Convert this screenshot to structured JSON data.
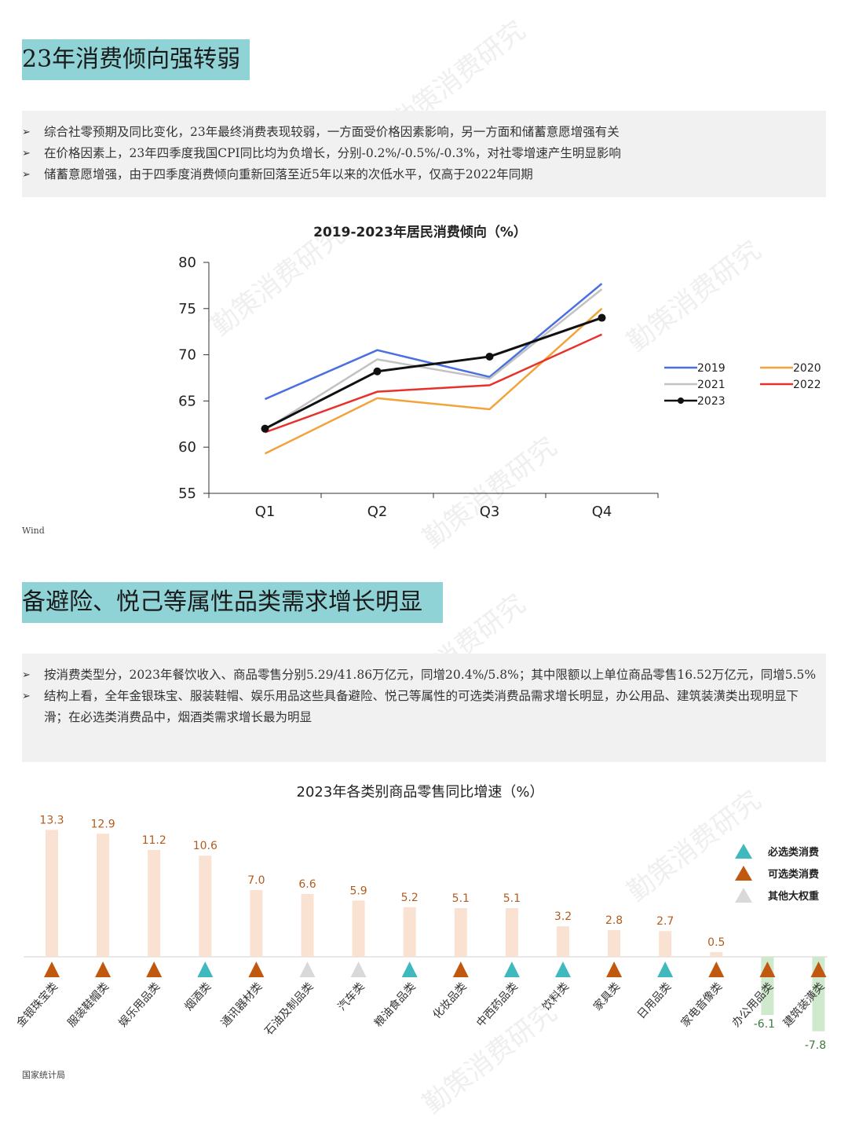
{
  "section1": {
    "title": "23年消费倾向强转弱",
    "bullets": [
      "综合社零预期及同比变化，23年最终消费表现较弱，一方面受价格因素影响，另一方面和储蓄意愿增强有关",
      "在价格因素上，23年四季度我国CPI同比均为负增长，分别-0.2%/-0.5%/-0.3%，对社零增速产生明显影响",
      "储蓄意愿增强，由于四季度消费倾向重新回落至近5年以来的次低水平，仅高于2022年同期"
    ],
    "source": "Wind"
  },
  "section2": {
    "title": "备避险、悦己等属性品类需求增长明显",
    "bullets": [
      "按消费类型分，2023年餐饮收入、商品零售分别5.29/41.86万亿元，同增20.4%/5.8%；其中限额以上单位商品零售16.52万亿元，同增5.5%",
      "结构上看，全年金银珠宝、服装鞋帽、娱乐用品这些具备避险、悦己等属性的可选类消费品需求增长明显，办公用品、建筑装潢类出现明显下滑；在必选类消费品中，烟酒类需求增长最为明显"
    ],
    "source": "国家统计局"
  },
  "bullet_mark": "➢",
  "watermark_text": "勤策消费研究",
  "chart_data": [
    {
      "type": "line",
      "title": "2019-2023年居民消费倾向（%）",
      "categories": [
        "Q1",
        "Q2",
        "Q3",
        "Q4"
      ],
      "ylim": [
        55,
        80
      ],
      "yticks": [
        55,
        60,
        65,
        70,
        75,
        80
      ],
      "grid": false,
      "legend_position": "right",
      "series": [
        {
          "name": "2019",
          "color": "#4a6fe0",
          "values": [
            65.2,
            70.5,
            67.6,
            77.7
          ],
          "markers": false
        },
        {
          "name": "2020",
          "color": "#f2a33a",
          "values": [
            59.3,
            65.3,
            64.1,
            75.0
          ],
          "markers": false
        },
        {
          "name": "2021",
          "color": "#c2c2c2",
          "values": [
            61.9,
            69.5,
            67.4,
            77.1
          ],
          "markers": false
        },
        {
          "name": "2022",
          "color": "#e8312a",
          "values": [
            61.6,
            66.0,
            66.7,
            72.2
          ],
          "markers": false
        },
        {
          "name": "2023",
          "color": "#111111",
          "values": [
            62.0,
            68.2,
            69.8,
            74.0
          ],
          "markers": true
        }
      ]
    },
    {
      "type": "bar",
      "title": "2023年各类别商品零售同比增速（%）",
      "categories": [
        "金银珠宝类",
        "服装鞋帽类",
        "娱乐用品类",
        "烟酒类",
        "通讯器材类",
        "石油及制品类",
        "汽车类",
        "粮油食品类",
        "化妆品类",
        "中西药品类",
        "饮料类",
        "家具类",
        "日用品类",
        "家电音像类",
        "办公用品类",
        "建筑装潢类"
      ],
      "category_labels": [
        "金银珠宝类",
        "服装鞋帽类",
        "娱乐用品类",
        "烟酒类",
        "通讯器材类",
        "石油及制品类",
        "汽车类",
        "粮油食品类",
        "化妆品类",
        "中西药品类",
        "饮料类",
        "家具类",
        "日用品类",
        "家电音像类",
        "办公用品类",
        "建筑装潢类"
      ],
      "values": [
        13.3,
        12.9,
        11.2,
        10.6,
        7.0,
        6.6,
        5.9,
        5.2,
        5.1,
        5.1,
        3.2,
        2.8,
        2.7,
        0.5,
        -6.1,
        -7.8
      ],
      "value_labels": [
        "13.3",
        "12.9",
        "11.2",
        "10.6",
        "7.0",
        "6.6",
        "5.9",
        "5.2",
        "5.1",
        "5.1",
        "3.2",
        "2.8",
        "2.7",
        "0.5",
        "-6.1",
        "-7.8"
      ],
      "category_type": [
        "可选类消费",
        "可选类消费",
        "可选类消费",
        "必选类消费",
        "可选类消费",
        "其他大权重",
        "其他大权重",
        "必选类消费",
        "可选类消费",
        "必选类消费",
        "必选类消费",
        "可选类消费",
        "必选类消费",
        "可选类消费",
        "可选类消费",
        "可选类消费"
      ],
      "bar_color_positive": "#f9e2d2",
      "bar_color_negative": "#cfe9cc",
      "value_label_color_positive": "#b35b1e",
      "value_label_color_negative": "#3d7a3d",
      "legend_position": "right",
      "legend": [
        {
          "name": "必选类消费",
          "color": "#3fb9bd"
        },
        {
          "name": "可选类消费",
          "color": "#c0580f"
        },
        {
          "name": "其他大权重",
          "color": "#d9d9d9"
        }
      ]
    }
  ]
}
